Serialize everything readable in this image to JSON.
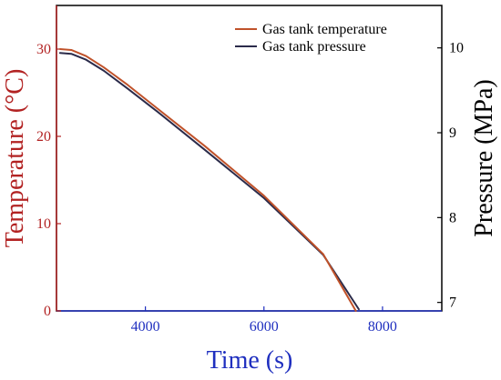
{
  "chart_data": {
    "type": "line",
    "xlabel": "Time (s)",
    "ylabel_left": "Temperature (°C)",
    "ylabel_right": "Pressure (MPa)",
    "xlim": [
      2500,
      9000
    ],
    "ylim_left": [
      0,
      35
    ],
    "ylim_right": [
      6.9,
      10.5
    ],
    "x_ticks": [
      4000,
      6000,
      8000
    ],
    "y_ticks_left": [
      0,
      10,
      20,
      30
    ],
    "y_ticks_right": [
      7,
      8,
      9,
      10
    ],
    "x_tick_labels": [
      "4000",
      "6000",
      "8000"
    ],
    "y_tick_labels_left": [
      "0",
      "10",
      "20",
      "30"
    ],
    "y_tick_labels_right": [
      "7",
      "8",
      "9",
      "10"
    ],
    "legend_position": "top-right",
    "grid": false,
    "colors": {
      "left_axis": "#b22222",
      "right_axis": "#000000",
      "x_axis": "#1f2fbf"
    },
    "series": [
      {
        "name": "Gas tank temperature",
        "axis": "left",
        "color": "#c0522a",
        "x": [
          2560,
          2750,
          3000,
          3300,
          3700,
          4200,
          5000,
          6000,
          7000,
          7550
        ],
        "y": [
          30.0,
          29.9,
          29.2,
          27.9,
          25.9,
          23.2,
          18.9,
          13.2,
          6.5,
          0.0
        ]
      },
      {
        "name": "Gas tank pressure",
        "axis": "right",
        "color": "#2b2b4a",
        "x": [
          2560,
          2750,
          3000,
          3300,
          3700,
          4200,
          5000,
          6000,
          7000,
          7600
        ],
        "y": [
          9.94,
          9.93,
          9.86,
          9.73,
          9.52,
          9.25,
          8.8,
          8.23,
          7.56,
          6.92
        ]
      }
    ]
  }
}
